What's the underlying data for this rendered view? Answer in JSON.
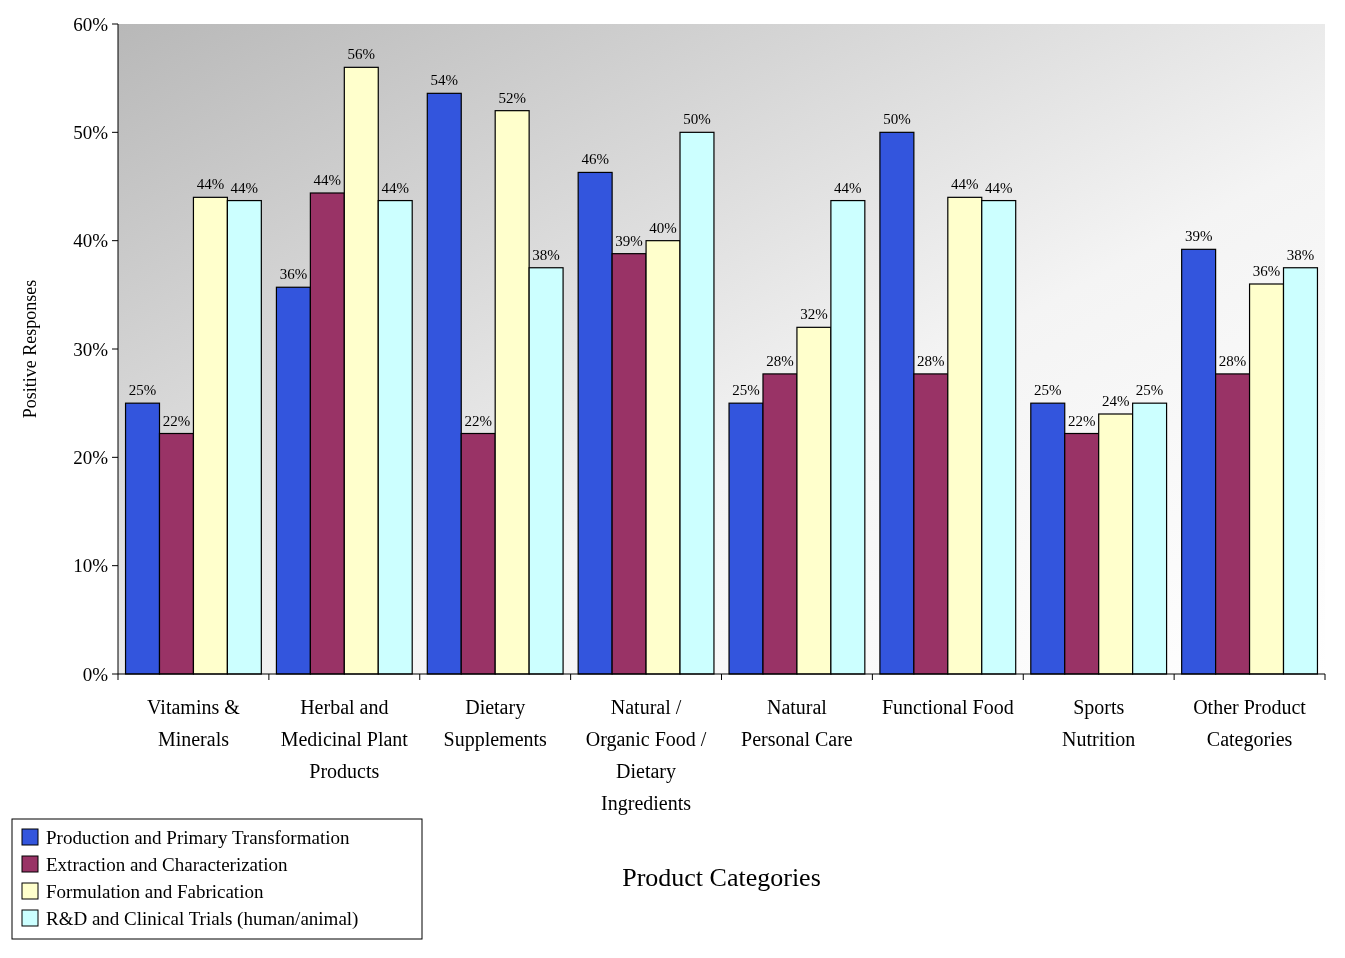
{
  "chart_data": {
    "type": "bar",
    "xlabel": "Product Categories",
    "ylabel": "Positive Responses",
    "categories": [
      "Vitamins & Minerals",
      "Herbal and Medicinal Plant Products",
      "Dietary Supplements",
      "Natural / Organic Food / Dietary Ingredients",
      "Natural Personal Care",
      "Functional Food",
      "Sports Nutrition",
      "Other Product Categories"
    ],
    "series": [
      {
        "name": "Production and Primary Transformation",
        "color": "#3355dd",
        "values": [
          25,
          35.7,
          53.6,
          46.3,
          25,
          50,
          25,
          39.2
        ],
        "value_labels": [
          "25%",
          "36%",
          "54%",
          "46%",
          "25%",
          "50%",
          "25%",
          "39%"
        ]
      },
      {
        "name": "Extraction and Characterization",
        "color": "#993366",
        "values": [
          22.2,
          44.4,
          22.2,
          38.8,
          27.7,
          27.7,
          22.2,
          27.7
        ],
        "value_labels": [
          "22%",
          "44%",
          "22%",
          "39%",
          "28%",
          "28%",
          "22%",
          "28%"
        ]
      },
      {
        "name": "Formulation and Fabrication",
        "color": "#ffffcc",
        "values": [
          44,
          56,
          52,
          40,
          32,
          44,
          24,
          36
        ],
        "value_labels": [
          "44%",
          "56%",
          "52%",
          "40%",
          "32%",
          "44%",
          "24%",
          "36%"
        ]
      },
      {
        "name": "R&D and Clinical Trials (human/animal)",
        "color": "#ccffff",
        "values": [
          43.7,
          43.7,
          37.5,
          50,
          43.7,
          43.7,
          25,
          37.5
        ],
        "value_labels": [
          "44%",
          "44%",
          "38%",
          "50%",
          "44%",
          "44%",
          "25%",
          "38%"
        ]
      }
    ],
    "ylim": [
      0,
      60
    ],
    "yticks": [
      {
        "value": 0,
        "label": "0%"
      },
      {
        "value": 10,
        "label": "10%"
      },
      {
        "value": 20,
        "label": "20%"
      },
      {
        "value": 30,
        "label": "30%"
      },
      {
        "value": 40,
        "label": "40%"
      },
      {
        "value": 50,
        "label": "50%"
      },
      {
        "value": 60,
        "label": "60%"
      }
    ],
    "grid": false,
    "legend": "bottom left"
  }
}
